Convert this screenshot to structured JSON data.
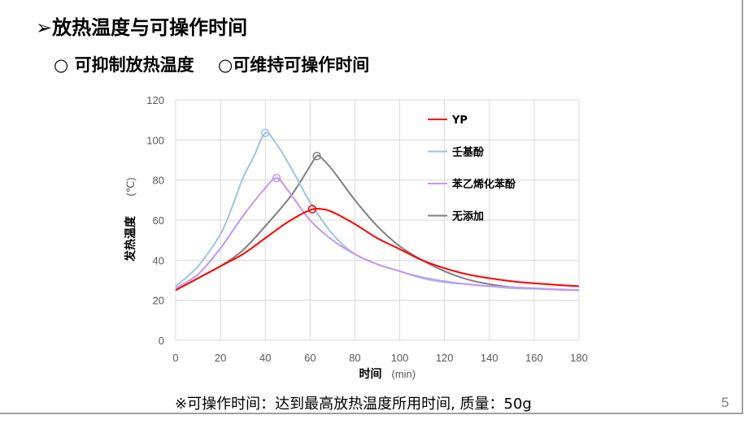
{
  "slide": {
    "title": "➢放热温度与可操作时间",
    "subtitle_items": [
      "○ 可抑制放热温度",
      "○可维持可操作时间"
    ],
    "footnote": "※可操作时间：达到最高放热温度所用时间, 质量：50g",
    "page_number": "5"
  },
  "chart_data": {
    "type": "line",
    "title": "",
    "xlabel": "时间",
    "xlabel_unit": "(min)",
    "ylabel": "发热温度",
    "ylabel_unit": "(℃)",
    "xlim": [
      0,
      180
    ],
    "ylim": [
      0,
      120
    ],
    "xticks": [
      0,
      20,
      40,
      60,
      80,
      100,
      120,
      140,
      160,
      180
    ],
    "yticks": [
      0,
      20,
      40,
      60,
      80,
      100,
      120
    ],
    "grid": true,
    "legend_position": "top-right",
    "series": [
      {
        "name": "YP",
        "color": "#ff0000",
        "x": [
          0,
          10,
          20,
          30,
          40,
          50,
          60,
          65,
          70,
          80,
          90,
          100,
          110,
          120,
          130,
          140,
          150,
          160,
          170,
          180
        ],
        "y": [
          25,
          31,
          37,
          43,
          51,
          59,
          65,
          65.5,
          64,
          58,
          51,
          45.5,
          40,
          36,
          33,
          31,
          29.5,
          28.5,
          27.7,
          27
        ],
        "peak": [
          61,
          65.5
        ]
      },
      {
        "name": "壬基酚",
        "color": "#9dc3e6",
        "x": [
          0,
          10,
          20,
          25,
          30,
          35,
          40,
          45,
          50,
          55,
          60,
          70,
          80,
          90,
          100,
          110,
          120,
          130,
          140,
          150,
          160,
          170,
          180
        ],
        "y": [
          27,
          37,
          53,
          66,
          81,
          92,
          103.5,
          98,
          89,
          79,
          69,
          53,
          43,
          38,
          34.5,
          31,
          29,
          28,
          27,
          26,
          25.7,
          25.3,
          25
        ],
        "peak": [
          40,
          103.5
        ]
      },
      {
        "name": "苯乙烯化苯酚",
        "color": "#c497f2",
        "x": [
          0,
          10,
          20,
          30,
          40,
          45,
          50,
          60,
          70,
          80,
          90,
          100,
          110,
          120,
          130,
          140,
          150,
          160,
          170,
          180
        ],
        "y": [
          26,
          33,
          46,
          62,
          76,
          81,
          75,
          60,
          50,
          43,
          38,
          34.5,
          31.5,
          29.5,
          28,
          27,
          26.5,
          26,
          25.5,
          25
        ],
        "peak": [
          45,
          81
        ]
      },
      {
        "name": "无添加",
        "color": "#808080",
        "x": [
          0,
          10,
          20,
          30,
          40,
          50,
          55,
          60,
          63,
          65,
          70,
          80,
          90,
          100,
          110,
          120,
          130,
          140,
          150,
          160,
          170,
          180
        ],
        "y": [
          25,
          31,
          37,
          45,
          57,
          70,
          78,
          87,
          92,
          91,
          85,
          70,
          57,
          47,
          40,
          34.5,
          30.5,
          28,
          26.5,
          25.8,
          25.3,
          25
        ],
        "peak": [
          63,
          92
        ]
      }
    ]
  }
}
